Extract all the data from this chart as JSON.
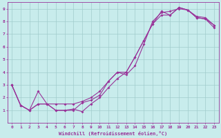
{
  "title": "",
  "xlabel": "Windchill (Refroidissement éolien,°C)",
  "ylabel": "",
  "bg_color": "#c8ecec",
  "grid_color": "#a0cccc",
  "line_color": "#993399",
  "xlim": [
    -0.5,
    23.5
  ],
  "ylim": [
    0,
    9.5
  ],
  "xticks": [
    0,
    1,
    2,
    3,
    4,
    5,
    6,
    7,
    8,
    9,
    10,
    11,
    12,
    13,
    14,
    15,
    16,
    17,
    18,
    19,
    20,
    21,
    22,
    23
  ],
  "yticks": [
    1,
    2,
    3,
    4,
    5,
    6,
    7,
    8,
    9
  ],
  "line1_x": [
    0,
    1,
    2,
    3,
    4,
    5,
    6,
    7,
    8,
    9,
    10,
    11,
    12,
    13,
    14,
    15,
    16,
    17,
    18,
    19,
    20,
    21,
    22,
    23
  ],
  "line1_y": [
    3.0,
    1.4,
    1.0,
    2.5,
    1.5,
    1.0,
    1.0,
    1.1,
    0.9,
    1.5,
    2.0,
    2.8,
    3.5,
    4.0,
    5.2,
    6.5,
    7.8,
    8.8,
    8.5,
    9.1,
    8.9,
    8.3,
    8.2,
    7.7
  ],
  "line2_x": [
    0,
    1,
    2,
    3,
    4,
    5,
    6,
    7,
    8,
    9,
    10,
    11,
    12,
    13,
    14,
    15,
    16,
    17,
    18,
    19,
    20,
    21,
    22,
    23
  ],
  "line2_y": [
    3.0,
    1.4,
    1.0,
    1.5,
    1.5,
    1.5,
    1.5,
    1.5,
    1.7,
    2.0,
    2.5,
    3.3,
    4.0,
    3.8,
    4.5,
    6.2,
    8.0,
    8.7,
    8.8,
    9.0,
    8.9,
    8.3,
    8.2,
    7.5
  ],
  "line3_x": [
    0,
    1,
    2,
    3,
    4,
    5,
    6,
    7,
    8,
    9,
    10,
    11,
    12,
    13,
    14,
    15,
    16,
    17,
    18,
    19,
    20,
    21,
    22,
    23
  ],
  "line3_y": [
    3.0,
    1.4,
    1.0,
    1.5,
    1.5,
    1.0,
    1.0,
    1.0,
    1.6,
    1.8,
    2.2,
    3.3,
    4.0,
    4.0,
    5.2,
    6.5,
    7.8,
    8.5,
    8.5,
    9.1,
    8.9,
    8.4,
    8.3,
    7.7
  ]
}
